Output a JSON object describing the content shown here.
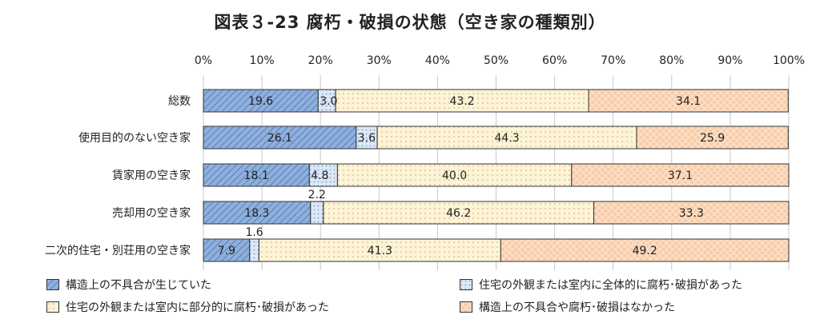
{
  "chart_data": {
    "type": "bar",
    "orientation": "horizontal",
    "stacked": "percent",
    "title": "図表３-23 腐朽・破損の状態（空き家の種類別）",
    "x_ticks": [
      "0%",
      "10%",
      "20%",
      "30%",
      "40%",
      "50%",
      "60%",
      "70%",
      "80%",
      "90%",
      "100%"
    ],
    "xlim": [
      0,
      100
    ],
    "categories": [
      "総数",
      "使用目的のない空き家",
      "賃家用の空き家",
      "売却用の空き家",
      "二次的住宅・別荘用の空き家"
    ],
    "series": [
      {
        "name": "構造上の不具合が生じていた",
        "values": [
          19.6,
          26.1,
          18.1,
          18.3,
          7.9
        ],
        "labels": [
          "19.6",
          "26.1",
          "18.1",
          "18.3",
          "7.9"
        ],
        "color": "#8fb0dc",
        "pattern": "diagonal"
      },
      {
        "name": "住宅の外観または室内に全体的に腐朽･破損があった",
        "values": [
          3.0,
          3.6,
          4.8,
          2.2,
          1.6
        ],
        "labels": [
          "3.0",
          "3.6",
          "4.8",
          "2.2",
          "1.6"
        ],
        "color": "#dde8f5",
        "pattern": "dots"
      },
      {
        "name": "住宅の外観または室内に部分的に腐朽･破損があった",
        "values": [
          43.2,
          44.3,
          40.0,
          46.2,
          41.3
        ],
        "labels": [
          "43.2",
          "44.3",
          "40.0",
          "46.2",
          "41.3"
        ],
        "color": "#fdf3d6",
        "pattern": "dots"
      },
      {
        "name": "構造上の不具合や腐朽･破損はなかった",
        "values": [
          34.1,
          25.9,
          37.1,
          33.3,
          49.2
        ],
        "labels": [
          "34.1",
          "25.9",
          "37.1",
          "33.3",
          "49.2"
        ],
        "color": "#f9cba6",
        "pattern": "lattice"
      }
    ],
    "legend_position": "bottom",
    "grid": true
  }
}
